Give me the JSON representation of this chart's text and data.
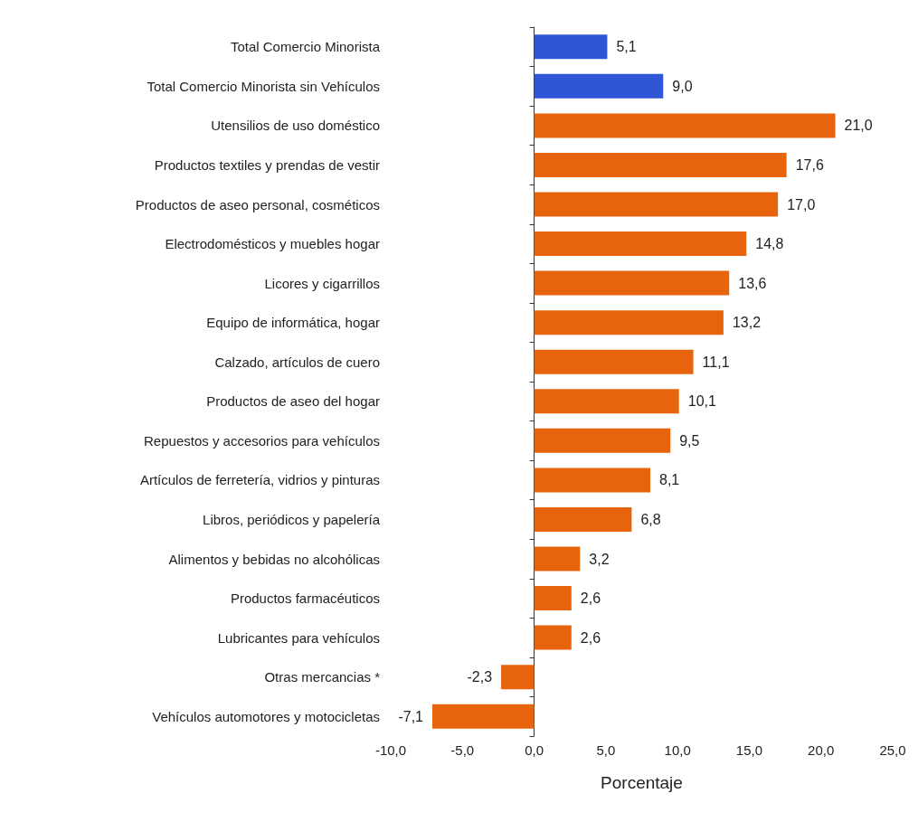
{
  "chart_data": {
    "type": "bar",
    "orientation": "horizontal",
    "xlabel": "Porcentaje",
    "categories": [
      "Total Comercio Minorista",
      "Total Comercio Minorista sin Vehículos",
      "Utensilios de uso doméstico",
      "Productos textiles y prendas de vestir",
      "Productos de aseo personal, cosméticos",
      "Electrodomésticos y muebles hogar",
      "Licores y cigarrillos",
      "Equipo de informática, hogar",
      "Calzado, artículos de cuero",
      "Productos de aseo del hogar",
      "Repuestos y accesorios para vehículos",
      "Artículos de ferretería, vidrios y pinturas",
      "Libros, periódicos y papelería",
      "Alimentos y bebidas no alcohólicas",
      "Productos farmacéuticos",
      "Lubricantes para vehículos",
      "Otras mercancias *",
      "Vehículos automotores y motocicletas"
    ],
    "values": [
      5.1,
      9.0,
      21.0,
      17.6,
      17.0,
      14.8,
      13.6,
      13.2,
      11.1,
      10.1,
      9.5,
      8.1,
      6.8,
      3.2,
      2.6,
      2.6,
      -2.3,
      -7.1
    ],
    "value_labels": [
      "5,1",
      "9,0",
      "21,0",
      "17,6",
      "17,0",
      "14,8",
      "13,6",
      "13,2",
      "11,1",
      "10,1",
      "9,5",
      "8,1",
      "6,8",
      "3,2",
      "2,6",
      "2,6",
      "-2,3",
      "-7,1"
    ],
    "colors": [
      "#2f56d6",
      "#2f56d6",
      "#e8640c",
      "#e8640c",
      "#e8640c",
      "#e8640c",
      "#e8640c",
      "#e8640c",
      "#e8640c",
      "#e8640c",
      "#e8640c",
      "#e8640c",
      "#e8640c",
      "#e8640c",
      "#e8640c",
      "#e8640c",
      "#e8640c",
      "#e8640c"
    ],
    "xlim": [
      -10,
      25
    ],
    "xticks": [
      {
        "value": -10,
        "label": "-10,0"
      },
      {
        "value": -5,
        "label": "-5,0"
      },
      {
        "value": 0,
        "label": "0,0"
      },
      {
        "value": 5,
        "label": "5,0"
      },
      {
        "value": 10,
        "label": "10,0"
      },
      {
        "value": 15,
        "label": "15,0"
      },
      {
        "value": 20,
        "label": "20,0"
      },
      {
        "value": 25,
        "label": "25,0"
      }
    ]
  }
}
